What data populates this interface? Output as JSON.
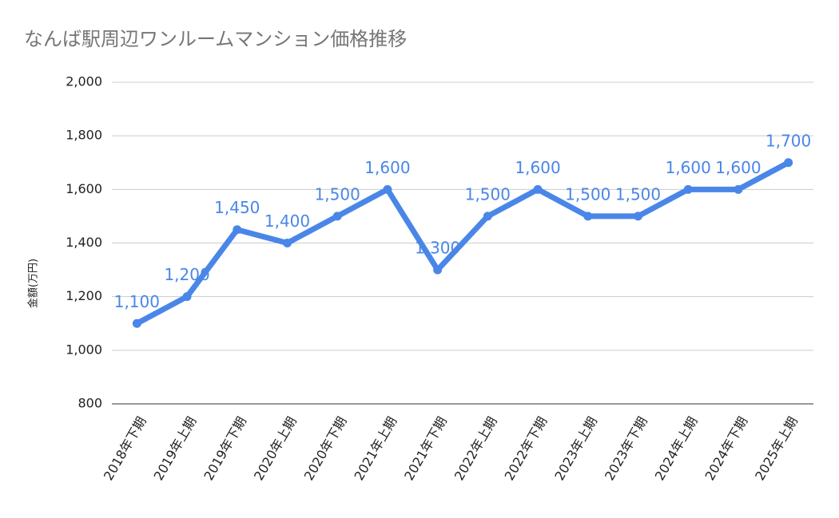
{
  "chart_data": {
    "type": "line",
    "title": "なんば駅周辺ワンルームマンション価格推移",
    "y_label": "金額(万円)",
    "categories": [
      "2018年下期",
      "2019年上期",
      "2019年下期",
      "2020年上期",
      "2020年下期",
      "2021年上期",
      "2021年下期",
      "2022年上期",
      "2022年下期",
      "2023年上期",
      "2023年下期",
      "2024年上期",
      "2024年下期",
      "2025年上期"
    ],
    "values": [
      1100,
      1200,
      1450,
      1400,
      1500,
      1600,
      1300,
      1500,
      1600,
      1500,
      1500,
      1600,
      1600,
      1700
    ],
    "value_labels": [
      "1,100",
      "1,200",
      "1,450",
      "1,400",
      "1,500",
      "1,600",
      "1,300",
      "1,500",
      "1,600",
      "1,500",
      "1,500",
      "1,600",
      "1,600",
      "1,700"
    ],
    "color": "#4a86e8",
    "ylim": [
      800,
      2000
    ],
    "yticks": [
      800,
      {
        "value": 1000,
        "label": "1,000"
      },
      {
        "value": 1200,
        "label": "1,200"
      },
      {
        "value": 1400,
        "label": "1,400"
      },
      {
        "value": 1600,
        "label": "1,600"
      },
      {
        "value": 1800,
        "label": "1,800"
      },
      {
        "value": 2000,
        "label": "2,000"
      }
    ],
    "grid": true
  }
}
